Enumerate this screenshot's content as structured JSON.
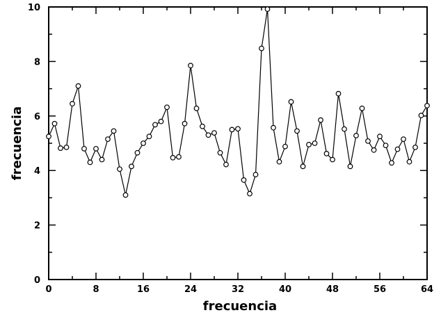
{
  "chart_data": {
    "type": "line",
    "title": "",
    "xlabel": "frecuencia",
    "ylabel": "frecuencia",
    "xlim": [
      0,
      64
    ],
    "ylim": [
      0,
      10
    ],
    "x_ticks": [
      0,
      8,
      16,
      24,
      32,
      40,
      48,
      56,
      64
    ],
    "x_tick_labels": [
      "0",
      "8",
      "16",
      "24",
      "32",
      "40",
      "48",
      "56",
      "64"
    ],
    "y_ticks": [
      0,
      2,
      4,
      6,
      8,
      10
    ],
    "y_tick_labels": [
      "0",
      "2",
      "4",
      "6",
      "8",
      "10"
    ],
    "grid": false,
    "marker": "open-circle",
    "colors": {
      "line": "#000000",
      "axis": "#000000",
      "background": "#ffffff"
    },
    "series": [
      {
        "x": [
          0,
          1,
          2,
          3,
          4,
          5,
          6,
          7,
          8,
          9,
          10,
          11,
          12,
          13,
          14,
          15,
          16,
          17,
          18,
          19,
          20,
          21,
          22,
          23,
          24,
          25,
          26,
          27,
          28,
          29,
          30,
          31,
          32,
          33,
          34,
          35,
          36,
          37,
          38,
          39,
          40,
          41,
          42,
          43,
          44,
          45,
          46,
          47,
          48,
          49,
          50,
          51,
          52,
          53,
          54,
          55,
          56,
          57,
          58,
          59,
          60,
          61,
          62,
          63,
          64
        ],
        "values": [
          5.25,
          5.72,
          4.82,
          4.85,
          6.45,
          7.1,
          4.8,
          4.3,
          4.8,
          4.4,
          5.15,
          5.45,
          4.05,
          3.1,
          4.15,
          4.65,
          5.0,
          5.25,
          5.68,
          5.8,
          6.32,
          4.47,
          4.5,
          5.72,
          7.85,
          6.28,
          5.62,
          5.3,
          5.38,
          4.65,
          4.22,
          5.5,
          5.53,
          3.65,
          3.15,
          3.85,
          8.48,
          9.92,
          5.57,
          4.32,
          4.88,
          6.52,
          5.45,
          4.15,
          4.95,
          5.0,
          5.85,
          4.62,
          4.4,
          6.82,
          5.52,
          4.15,
          5.28,
          6.28,
          5.08,
          4.75,
          5.25,
          4.92,
          4.28,
          4.78,
          5.15,
          4.32,
          4.85,
          6.02,
          6.38
        ]
      }
    ]
  }
}
